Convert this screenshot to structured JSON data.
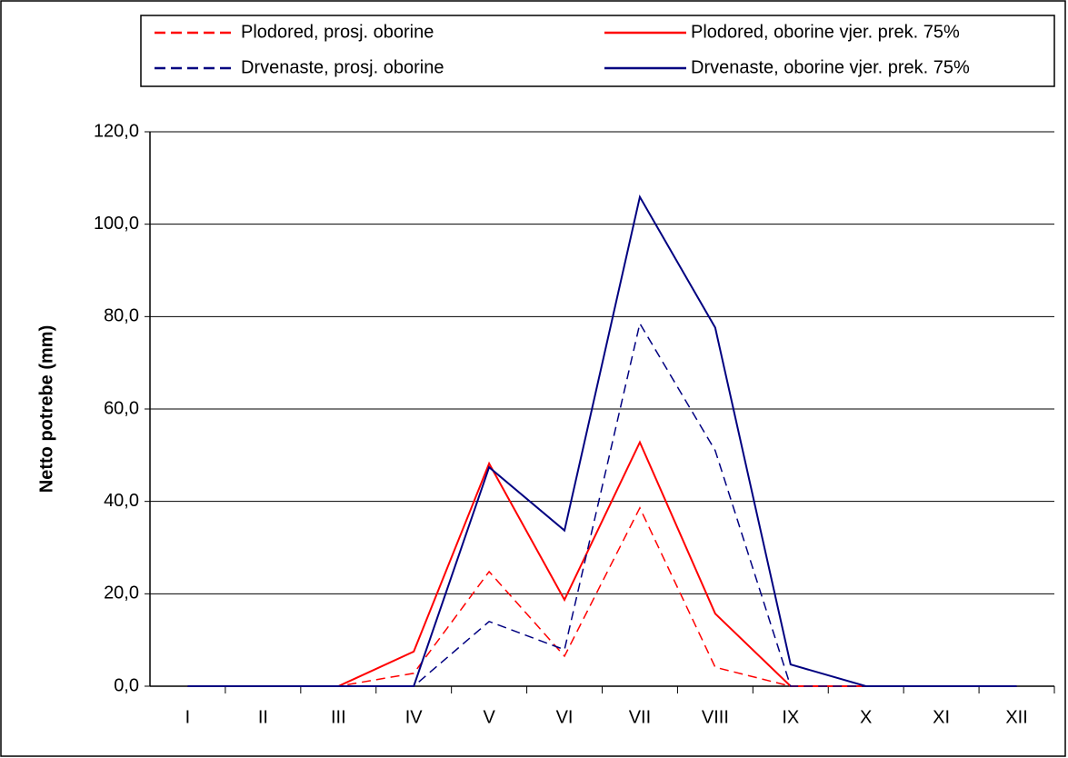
{
  "chart_data": {
    "type": "line",
    "y_label": "Netto potrebe (mm)",
    "categories": [
      "I",
      "II",
      "III",
      "IV",
      "V",
      "VI",
      "VII",
      "VIII",
      "IX",
      "X",
      "XI",
      "XII"
    ],
    "series": [
      {
        "name": "Plodored, prosj. oborine",
        "color": "#ff0000",
        "dashed": true,
        "values": [
          0,
          0,
          0,
          2.8,
          24.8,
          6.5,
          38.6,
          4.1,
          0,
          0,
          0,
          0
        ]
      },
      {
        "name": "Plodored, oborine vjer. prek. 75%",
        "color": "#ff0000",
        "dashed": false,
        "values": [
          0,
          0,
          0,
          7.5,
          48.2,
          18.7,
          52.8,
          15.7,
          0,
          0,
          0,
          0
        ]
      },
      {
        "name": "Drvenaste, prosj. oborine",
        "color": "#000080",
        "dashed": true,
        "values": [
          0,
          0,
          0,
          0,
          14.0,
          7.9,
          78.5,
          51.0,
          0,
          0,
          0,
          0
        ]
      },
      {
        "name": "Drvenaste, oborine vjer. prek. 75%",
        "color": "#000080",
        "dashed": false,
        "values": [
          0,
          0,
          0,
          0,
          47.4,
          33.7,
          105.9,
          77.6,
          4.7,
          0,
          0,
          0
        ]
      }
    ],
    "ylim": [
      0,
      120
    ],
    "yticks": [
      {
        "value": 0,
        "label": "0,0"
      },
      {
        "value": 20,
        "label": "20,0"
      },
      {
        "value": 40,
        "label": "40,0"
      },
      {
        "value": 60,
        "label": "60,0"
      },
      {
        "value": 80,
        "label": "80,0"
      },
      {
        "value": 100,
        "label": "100,0"
      },
      {
        "value": 120,
        "label": "120,0"
      }
    ],
    "grid": true,
    "legend": "top"
  }
}
